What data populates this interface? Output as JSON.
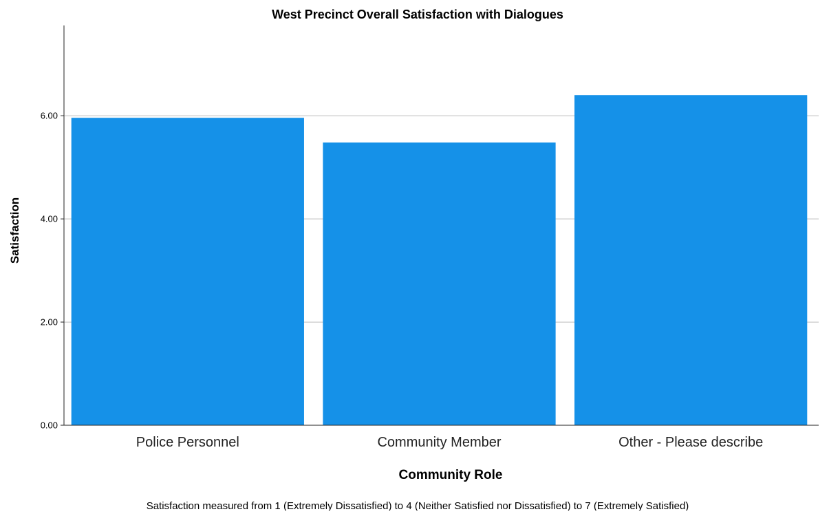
{
  "chart_data": {
    "type": "bar",
    "title": "West Precinct Overall Satisfaction with Dialogues",
    "xlabel": "Community Role",
    "ylabel": "Satisfaction",
    "footnote": "Satisfaction measured from 1 (Extremely Dissatisfied) to 4 (Neither Satisfied nor Dissatisfied) to 7 (Extremely Satisfied)",
    "categories": [
      "Police Personnel",
      "Community Member",
      "Other - Please describe"
    ],
    "values": [
      5.96,
      5.48,
      6.4
    ],
    "ylim": [
      0,
      7.75
    ],
    "yticks": [
      0,
      2,
      4,
      6
    ],
    "ytick_labels": [
      "0.00",
      "2.00",
      "4.00",
      "6.00"
    ],
    "grid": "horizontal",
    "colors": {
      "bar": "#1591E8",
      "grid": "#BBBBBB",
      "axis": "#222222",
      "text": "#000000"
    }
  }
}
